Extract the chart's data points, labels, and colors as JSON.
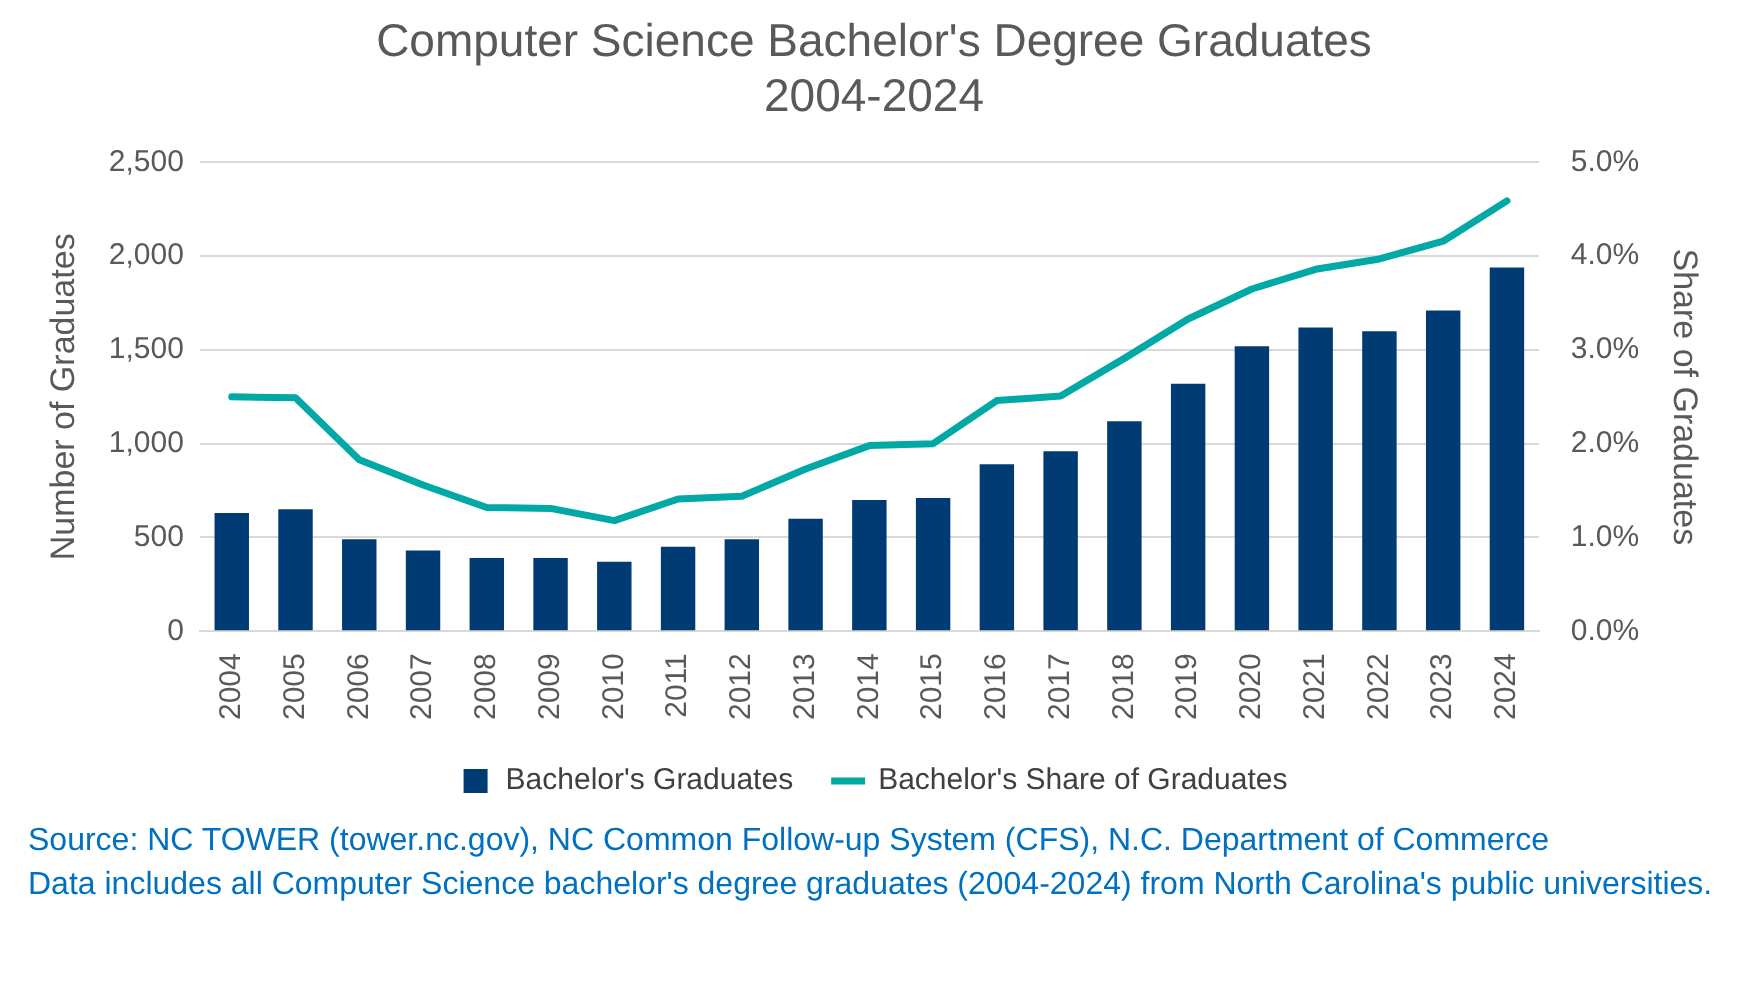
{
  "chart_data": {
    "type": "bar",
    "title": "Computer Science Bachelor's Degree Graduates\n2004-2024",
    "ylabel": "Number of Graduates",
    "y2label": "Share of Graduates",
    "categories": [
      "2004",
      "2005",
      "2006",
      "2007",
      "2008",
      "2009",
      "2010",
      "2011",
      "2012",
      "2013",
      "2014",
      "2015",
      "2016",
      "2017",
      "2018",
      "2019",
      "2020",
      "2021",
      "2022",
      "2023",
      "2024"
    ],
    "series": [
      {
        "name": "Bachelor's Graduates",
        "color": "#003b73",
        "values": [
          630,
          650,
          490,
          430,
          390,
          390,
          370,
          450,
          490,
          600,
          700,
          710,
          890,
          960,
          1120,
          1320,
          1520,
          1620,
          1600,
          1710,
          1940
        ]
      },
      {
        "name": "Bachelor's Share of Graduates",
        "type": "line",
        "axis": "y2",
        "color": "#00a9a5",
        "values": [
          2.5,
          2.49,
          1.83,
          1.56,
          1.32,
          1.31,
          1.18,
          1.41,
          1.44,
          1.73,
          1.98,
          2.0,
          2.46,
          2.51,
          2.91,
          3.33,
          3.65,
          3.86,
          3.97,
          4.16,
          4.59
        ]
      }
    ],
    "ylim": [
      0,
      2500
    ],
    "yticks": [
      0,
      500,
      {
        "value": 1000,
        "label": "1,000"
      },
      {
        "value": 1500,
        "label": "1,500"
      },
      {
        "value": 2000,
        "label": "2,000"
      },
      {
        "value": 2500,
        "label": "2,500"
      }
    ],
    "y2lim": [
      0,
      5
    ],
    "y2ticks": [
      {
        "value": 0,
        "label": "0.0%"
      },
      {
        "value": 1,
        "label": "1.0%"
      },
      {
        "value": 2,
        "label": "2.0%"
      },
      {
        "value": 3,
        "label": "3.0%"
      },
      {
        "value": 4,
        "label": "4.0%"
      },
      {
        "value": 5,
        "label": "5.0%"
      }
    ],
    "grid": "y",
    "legend": "bottom",
    "marker": "none",
    "line_style": "solid",
    "annotations": [
      "Source: NC TOWER (tower.nc.gov), NC Common Follow-up System (CFS), N.C. Department of Commerce",
      "Data includes all Computer Science bachelor's degree graduates (2004-2024) from North Carolina's public universities."
    ]
  }
}
